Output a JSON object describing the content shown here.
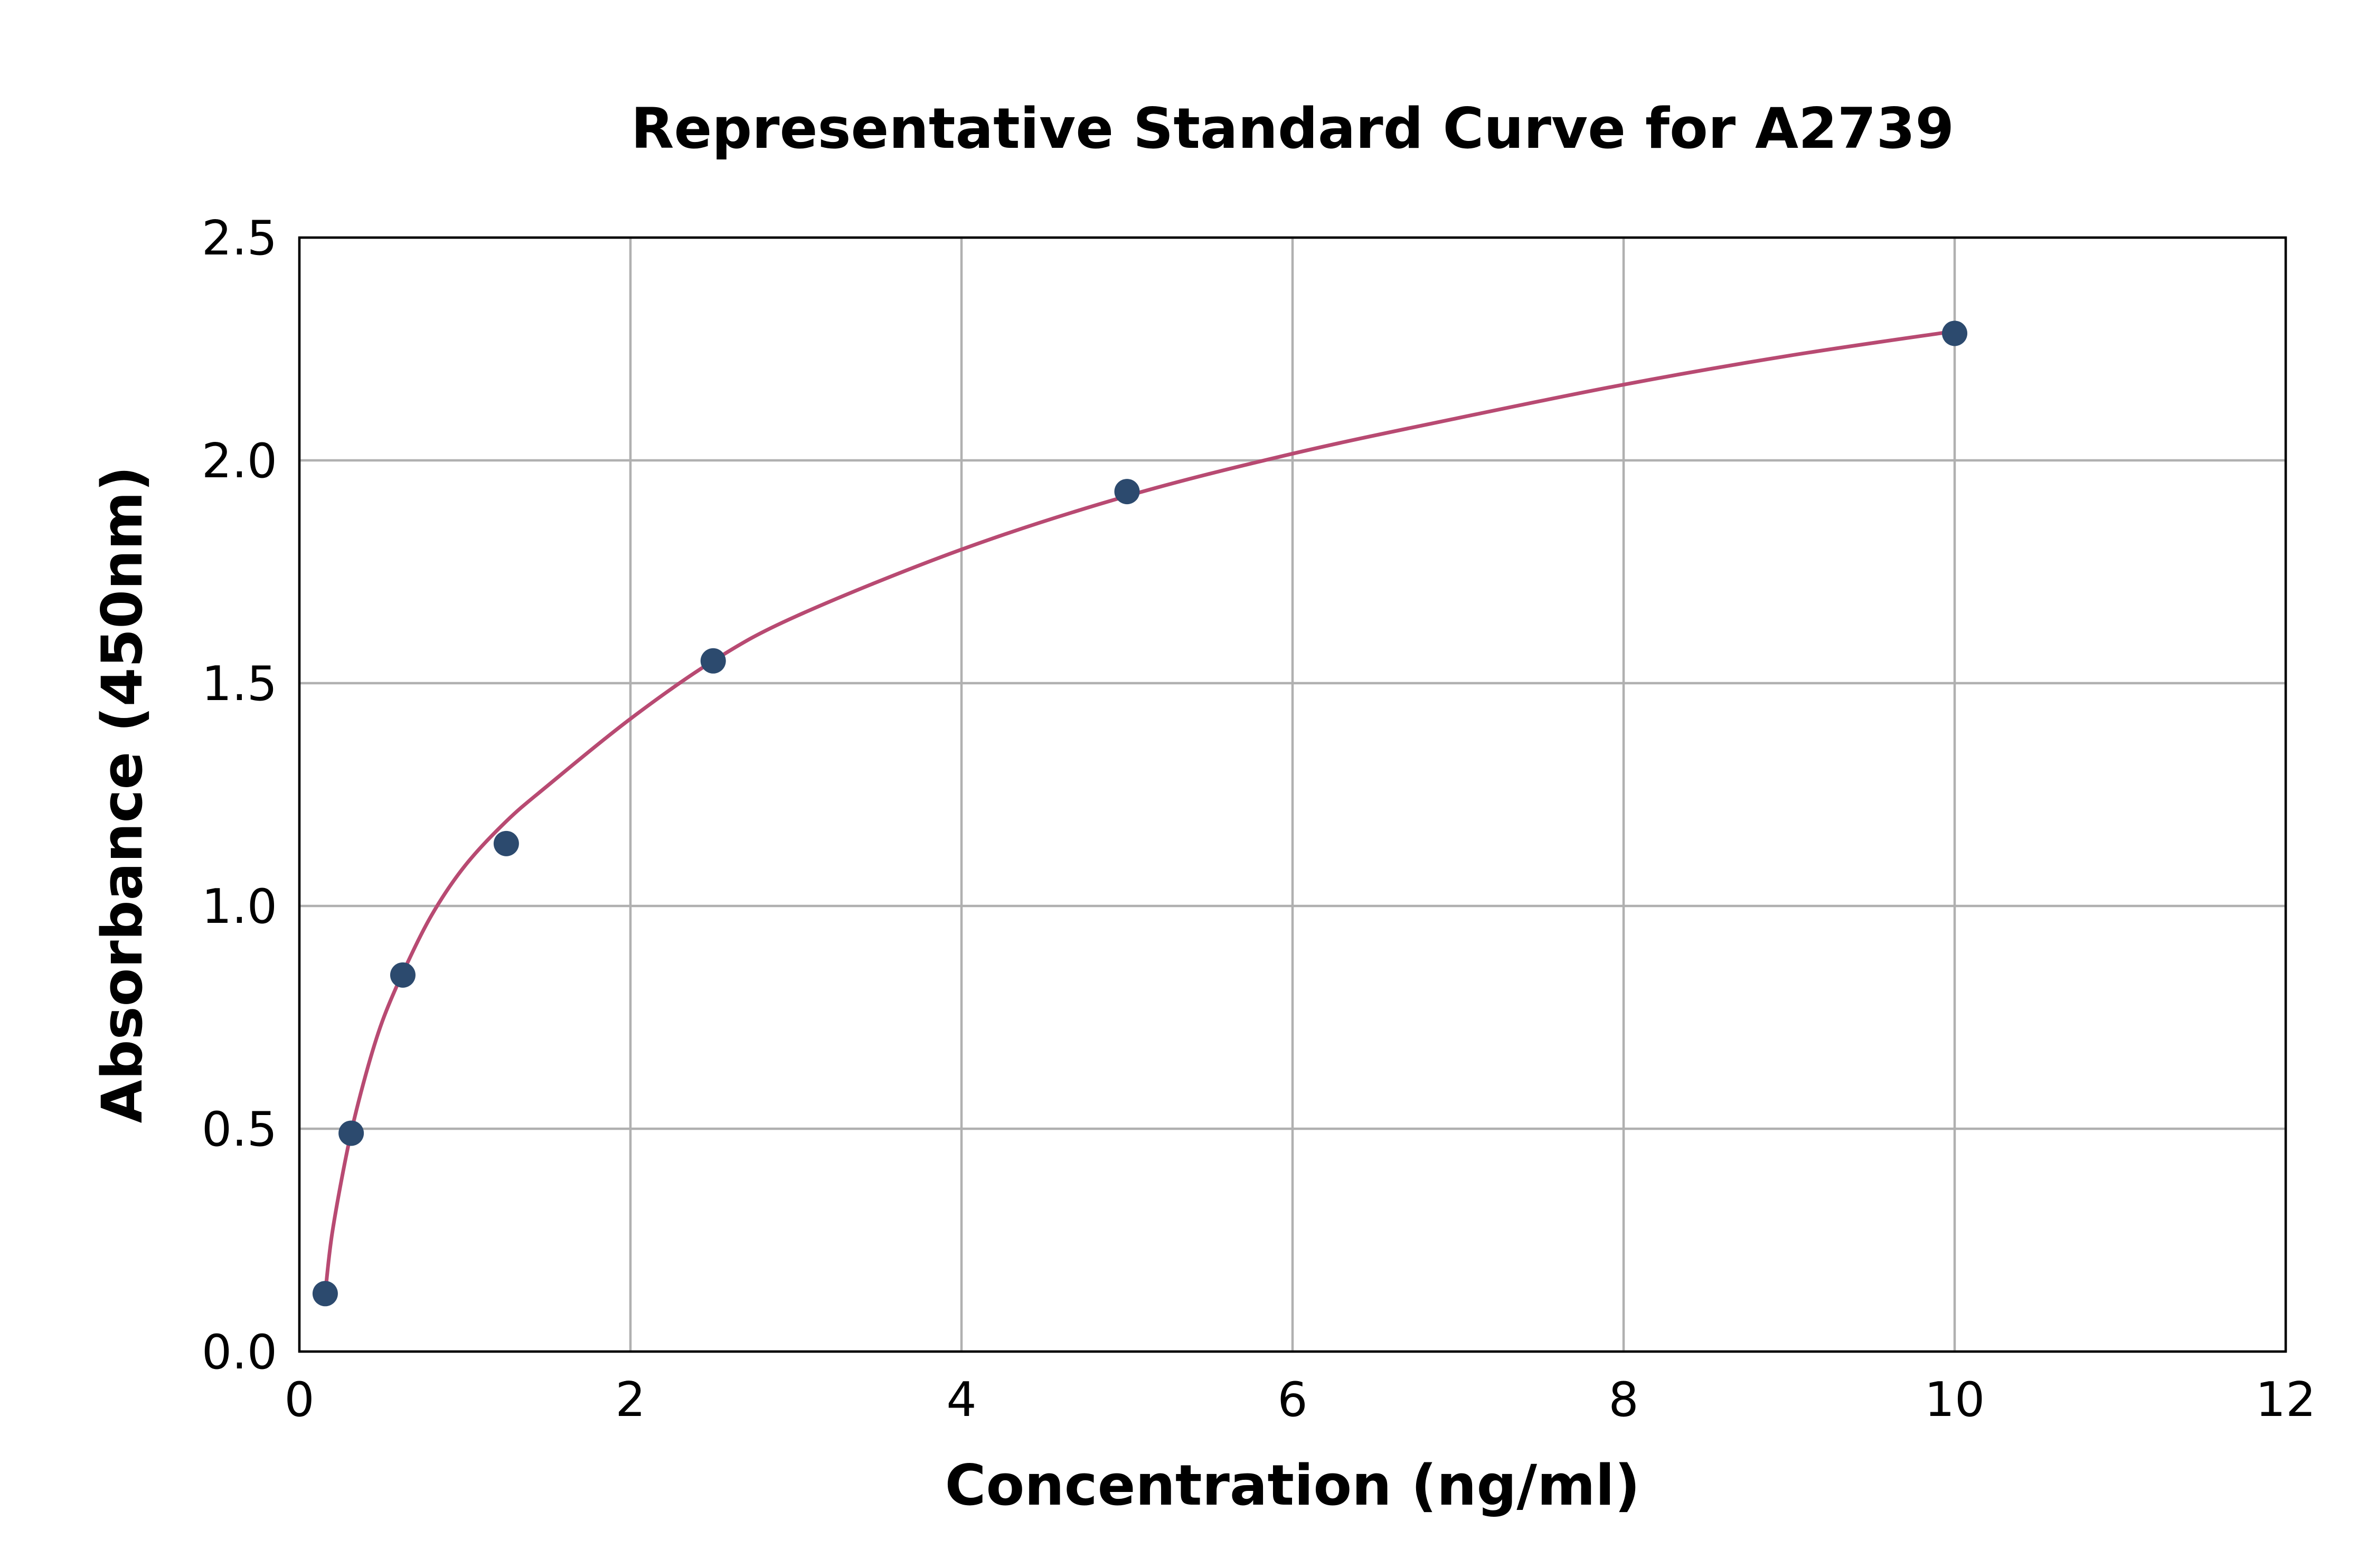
{
  "chart_data": {
    "type": "scatter",
    "title": "Representative Standard Curve for A2739",
    "xlabel": "Concentration (ng/ml)",
    "ylabel": "Absorbance (450nm)",
    "xlim": [
      0,
      12
    ],
    "ylim": [
      0,
      2.5
    ],
    "xticks": [
      "0",
      "2",
      "4",
      "6",
      "8",
      "10",
      "12"
    ],
    "yticks": [
      "0.0",
      "0.5",
      "1.0",
      "1.5",
      "2.0",
      "2.5"
    ],
    "grid": true,
    "series": [
      {
        "kind": "points",
        "x": [
          0.156,
          0.313,
          0.625,
          1.25,
          2.5,
          5,
          10
        ],
        "y": [
          0.13,
          0.49,
          0.845,
          1.14,
          1.55,
          1.93,
          2.285
        ]
      },
      {
        "kind": "fit-curve",
        "x": [
          0.156,
          0.2,
          0.3,
          0.4,
          0.5,
          0.625,
          0.8,
          1.0,
          1.25,
          1.5,
          2.0,
          2.5,
          3.0,
          4.0,
          5.0,
          6.0,
          7.0,
          8.0,
          9.0,
          10.0
        ],
        "y": [
          0.13,
          0.27,
          0.47,
          0.62,
          0.74,
          0.85,
          0.98,
          1.09,
          1.19,
          1.27,
          1.42,
          1.55,
          1.65,
          1.8,
          1.92,
          2.015,
          2.095,
          2.17,
          2.235,
          2.29
        ]
      }
    ],
    "colors": {
      "points": "#2c4a6e",
      "curve": "#b84a72"
    }
  }
}
